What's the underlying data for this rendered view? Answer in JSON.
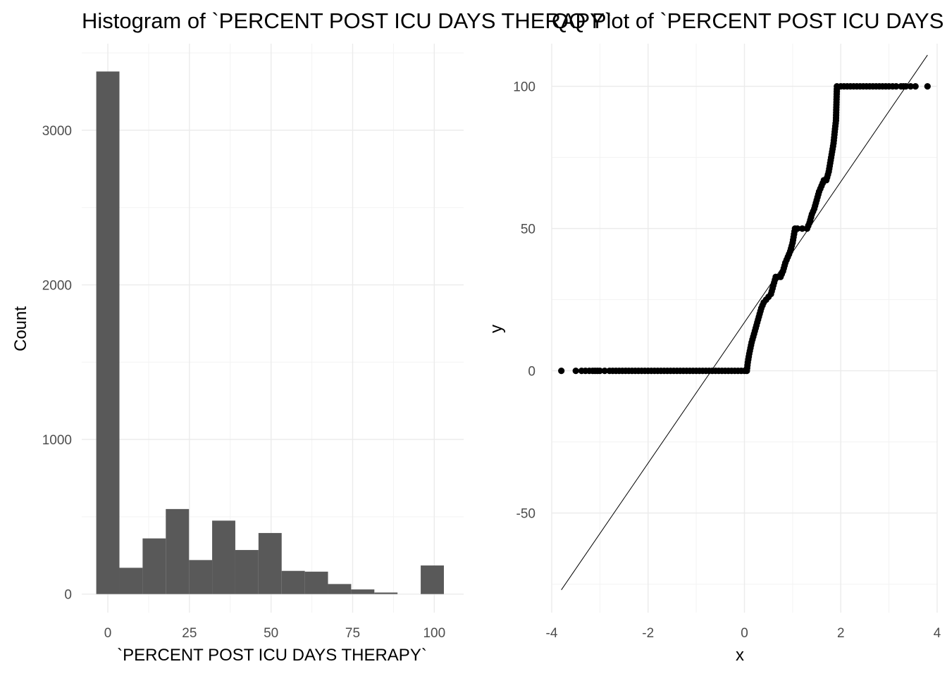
{
  "chart_data": [
    {
      "type": "bar",
      "subtype": "histogram",
      "title": "Histogram of `PERCENT POST ICU DAYS THERAPY`",
      "xlabel": "`PERCENT POST ICU DAYS THERAPY`",
      "ylabel": "Count",
      "bin_width": 7.1,
      "bin_centers": [
        0,
        7.1,
        14.2,
        21.3,
        28.4,
        35.5,
        42.6,
        49.7,
        56.8,
        63.9,
        71.0,
        78.1,
        85.2,
        92.3,
        99.4
      ],
      "values": [
        3380,
        170,
        360,
        550,
        220,
        475,
        285,
        395,
        150,
        145,
        65,
        30,
        10,
        0,
        185
      ],
      "xlim": [
        -8,
        109
      ],
      "ylim": [
        -120,
        3560
      ],
      "x_ticks": [
        0,
        25,
        50,
        75,
        100
      ],
      "x_tick_labels": [
        "0",
        "25",
        "50",
        "75",
        "100"
      ],
      "y_ticks": [
        0,
        1000,
        2000,
        3000
      ],
      "y_tick_labels": [
        "0",
        "1000",
        "2000",
        "3000"
      ],
      "bar_color": "#595959",
      "grid": true
    },
    {
      "type": "scatter",
      "subtype": "qq-plot",
      "title": "QQ Plot of `PERCENT POST ICU DAYS THERAPY`",
      "xlabel": "x",
      "ylabel": "y",
      "xlim": [
        -4.0,
        4.0
      ],
      "ylim": [
        -85,
        115
      ],
      "x_ticks": [
        -4,
        -2,
        0,
        2,
        4
      ],
      "x_tick_labels": [
        "-4",
        "-2",
        "0",
        "2",
        "4"
      ],
      "y_ticks": [
        -50,
        0,
        50,
        100
      ],
      "y_tick_labels": [
        "-50",
        "0",
        "50",
        "100"
      ],
      "reference_line": {
        "x": [
          -3.8,
          3.8
        ],
        "y": [
          -77,
          111
        ]
      },
      "points": [
        [
          -3.8,
          0
        ],
        [
          -3.5,
          0
        ],
        [
          -3.38,
          0
        ],
        [
          -3.3,
          0
        ],
        [
          -3.22,
          0
        ],
        [
          -3.15,
          0
        ],
        [
          -3.1,
          0
        ],
        [
          -3.05,
          0
        ],
        [
          -3.0,
          0
        ],
        [
          -2.9,
          0
        ],
        [
          -2.8,
          0
        ],
        [
          -2.6,
          0
        ],
        [
          -2.4,
          0
        ],
        [
          -2.2,
          0
        ],
        [
          -2.0,
          0
        ],
        [
          -1.8,
          0
        ],
        [
          -1.6,
          0
        ],
        [
          -1.4,
          0
        ],
        [
          -1.2,
          0
        ],
        [
          -1.0,
          0
        ],
        [
          -0.8,
          0
        ],
        [
          -0.6,
          0
        ],
        [
          -0.4,
          0
        ],
        [
          -0.2,
          0
        ],
        [
          0.0,
          0
        ],
        [
          0.05,
          0
        ],
        [
          0.07,
          3
        ],
        [
          0.1,
          6
        ],
        [
          0.15,
          10
        ],
        [
          0.2,
          13
        ],
        [
          0.25,
          16
        ],
        [
          0.3,
          19
        ],
        [
          0.35,
          22
        ],
        [
          0.4,
          24
        ],
        [
          0.45,
          25
        ],
        [
          0.5,
          26
        ],
        [
          0.55,
          27
        ],
        [
          0.6,
          30
        ],
        [
          0.65,
          33
        ],
        [
          0.7,
          33
        ],
        [
          0.75,
          33
        ],
        [
          0.8,
          35
        ],
        [
          0.85,
          38
        ],
        [
          0.9,
          40
        ],
        [
          0.95,
          42
        ],
        [
          1.0,
          45
        ],
        [
          1.03,
          48
        ],
        [
          1.05,
          50
        ],
        [
          1.1,
          50
        ],
        [
          1.2,
          50
        ],
        [
          1.3,
          50
        ],
        [
          1.35,
          52
        ],
        [
          1.4,
          55
        ],
        [
          1.45,
          57
        ],
        [
          1.5,
          60
        ],
        [
          1.55,
          63
        ],
        [
          1.6,
          65
        ],
        [
          1.65,
          67
        ],
        [
          1.7,
          67
        ],
        [
          1.75,
          70
        ],
        [
          1.8,
          75
        ],
        [
          1.85,
          80
        ],
        [
          1.88,
          85
        ],
        [
          1.9,
          88
        ],
        [
          1.92,
          100
        ],
        [
          2.0,
          100
        ],
        [
          2.2,
          100
        ],
        [
          2.4,
          100
        ],
        [
          2.6,
          100
        ],
        [
          2.8,
          100
        ],
        [
          3.0,
          100
        ],
        [
          3.15,
          100
        ],
        [
          3.25,
          100
        ],
        [
          3.3,
          100
        ],
        [
          3.35,
          100
        ],
        [
          3.45,
          100
        ],
        [
          3.55,
          100
        ],
        [
          3.8,
          100
        ]
      ],
      "point_color": "#000000",
      "grid": true
    }
  ]
}
